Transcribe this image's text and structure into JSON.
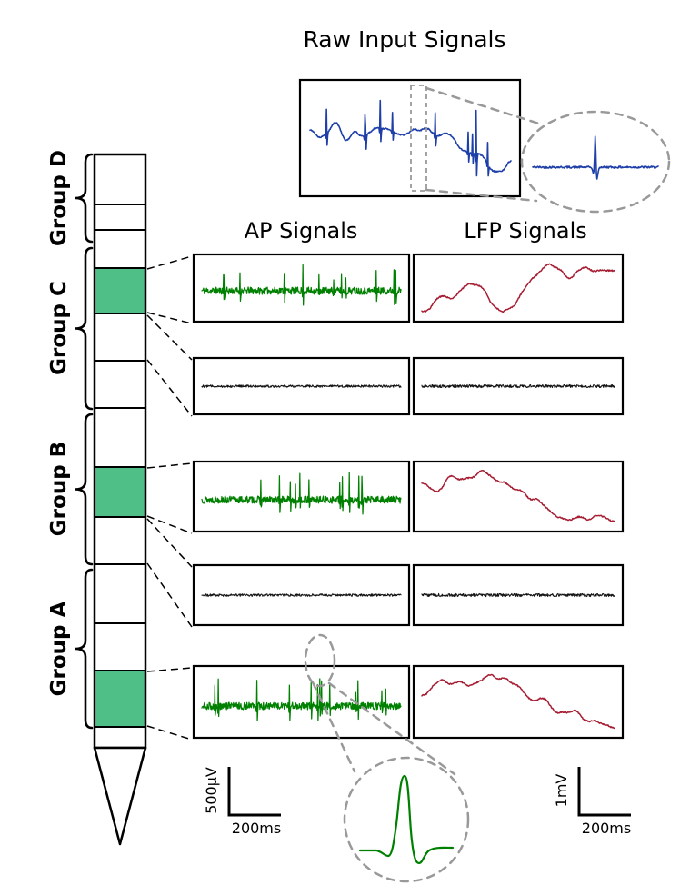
{
  "title": "Raw Input Signals",
  "columns": {
    "ap": "AP Signals",
    "lfp": "LFP Signals"
  },
  "groups": [
    {
      "label": "Group D"
    },
    {
      "label": "Group C"
    },
    {
      "label": "Group B"
    },
    {
      "label": "Group A"
    }
  ],
  "rows": [
    {
      "ap": "active",
      "lfp": "active"
    },
    {
      "ap": "silent",
      "lfp": "silent"
    },
    {
      "ap": "active",
      "lfp": "active"
    },
    {
      "ap": "silent",
      "lfp": "silent"
    },
    {
      "ap": "active",
      "lfp": "active"
    }
  ],
  "scale_left": {
    "vertical": "500µV",
    "horizontal": "200ms"
  },
  "scale_right": {
    "vertical": "1mV",
    "horizontal": "200ms"
  },
  "colors": {
    "raw_signal": "#1E3FA8",
    "ap_signal": "#008000",
    "lfp_signal": "#A61E33",
    "silent_signal": "#141414",
    "electrode_active": "#4FBE87",
    "zoom_dash": "#999999",
    "ink": "#000000"
  }
}
